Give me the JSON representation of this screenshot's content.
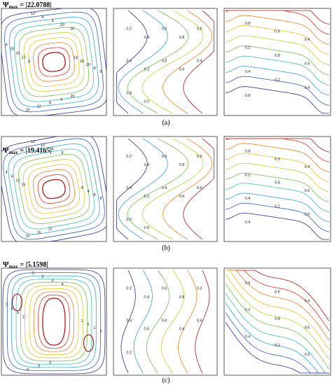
{
  "figure": {
    "rows": [
      {
        "psi_symbol": "Ψ",
        "psi_sub": "max",
        "psi_value": "= |22.0788|",
        "caption": "(a)",
        "stream_labels": [
          "4",
          "8",
          "12",
          "16",
          "20",
          "4",
          "8",
          "12",
          "16",
          "20",
          "4",
          "8",
          "12",
          "16",
          "20",
          "4",
          "8",
          "12",
          "16",
          "20"
        ],
        "middle_labels": [
          "0.2",
          "0.4",
          "0.6",
          "0.8",
          "0.6",
          "0.4",
          "0.2",
          "0.8",
          "0.6",
          "0.4",
          "0.8",
          "0.2"
        ],
        "right_labels": [
          "0.8",
          "0.6",
          "0.4",
          "0.2",
          "0.8",
          "0.6",
          "0.4",
          "0.2",
          "0.4",
          "0.8"
        ]
      },
      {
        "psi_symbol": "Ψ",
        "psi_sub": "max",
        "psi_value": "= |19.4165|",
        "caption": "(b)",
        "stream_labels": [
          "4",
          "8",
          "12",
          "16",
          "4",
          "8",
          "12",
          "16",
          "12",
          "4",
          "8",
          "12",
          "16",
          "4",
          "8"
        ],
        "middle_labels": [
          "0.2",
          "0.4",
          "0.6",
          "0.8",
          "0.6",
          "0.4",
          "0.2",
          "0.4",
          "0.6",
          "0.8",
          "0.2",
          "0.6"
        ],
        "right_labels": [
          "0.8",
          "0.6",
          "0.4",
          "0.2",
          "0.8",
          "0.6",
          "0.4",
          "0.2",
          "0.6",
          "0.4"
        ]
      },
      {
        "psi_symbol": "Ψ",
        "psi_sub": "max",
        "psi_value": "= |5.1598|",
        "caption": "(c)",
        "stream_labels": [
          "1",
          "2",
          "3",
          "4",
          "5",
          "1",
          "2",
          "3",
          "4",
          "5",
          "4",
          "3",
          "2",
          "1",
          "4"
        ],
        "middle_labels": [
          "0.2",
          "0.4",
          "0.6",
          "0.8",
          "0.2",
          "0.4",
          "0.6",
          "0.8",
          "0.4",
          "0.6",
          "0.2"
        ],
        "right_labels": [
          "0.8",
          "0.6",
          "0.4",
          "0.2",
          "0.8",
          "0.6",
          "0.4",
          "0.2",
          "0.2"
        ]
      }
    ],
    "colors": [
      "#2b2f8f",
      "#3060c0",
      "#35a0d8",
      "#40c0b0",
      "#70c050",
      "#c8d030",
      "#f0c020",
      "#f08020",
      "#e03020",
      "#b01818"
    ]
  }
}
